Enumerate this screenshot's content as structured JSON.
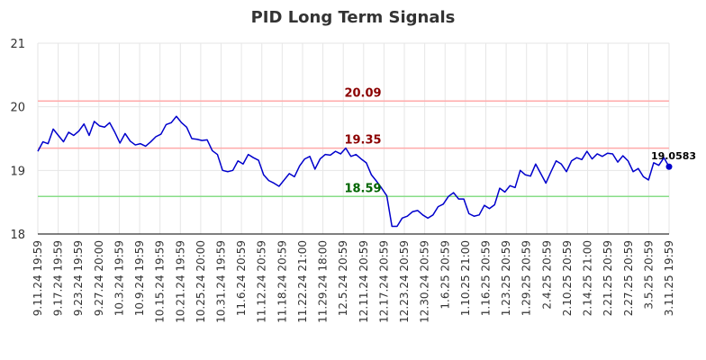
{
  "chart_data": {
    "type": "line",
    "title": "PID Long Term Signals",
    "xlabel": "",
    "ylabel": "",
    "ylim": [
      18,
      21
    ],
    "yticks": [
      18,
      19,
      20,
      21
    ],
    "grid": true,
    "xtick_labels": [
      "9.11.24 19:59",
      "9.17.24 19:59",
      "9.23.24 19:59",
      "9.27.24 20:00",
      "10.3.24 19:59",
      "10.9.24 19:59",
      "10.15.24 19:59",
      "10.21.24 19:59",
      "10.25.24 20:00",
      "10.31.24 19:59",
      "11.6.24 20:59",
      "11.12.24 20:59",
      "11.18.24 20:59",
      "11.22.24 21:00",
      "11.29.24 18:00",
      "12.5.24 20:59",
      "12.11.24 20:59",
      "12.17.24 20:59",
      "12.23.24 20:59",
      "12.30.24 20:59",
      "1.6.25 20:59",
      "1.10.25 21:00",
      "1.16.25 20:59",
      "1.23.25 20:59",
      "1.29.25 20:59",
      "2.4.25 20:59",
      "2.10.25 20:59",
      "2.14.25 21:00",
      "2.21.25 20:59",
      "2.27.25 20:59",
      "3.5.25 20:59",
      "3.11.25 19:59"
    ],
    "series": [
      {
        "color": "#0000cc",
        "values": [
          19.3,
          19.45,
          19.42,
          19.65,
          19.55,
          19.45,
          19.6,
          19.55,
          19.62,
          19.73,
          19.55,
          19.77,
          19.7,
          19.68,
          19.75,
          19.6,
          19.43,
          19.58,
          19.46,
          19.4,
          19.42,
          19.38,
          19.45,
          19.53,
          19.57,
          19.72,
          19.75,
          19.85,
          19.75,
          19.68,
          19.5,
          19.49,
          19.47,
          19.48,
          19.31,
          19.25,
          19.0,
          18.98,
          19.0,
          19.15,
          19.1,
          19.25,
          19.2,
          19.16,
          18.93,
          18.84,
          18.8,
          18.75,
          18.85,
          18.95,
          18.9,
          19.07,
          19.18,
          19.22,
          19.02,
          19.18,
          19.25,
          19.24,
          19.3,
          19.26,
          19.35,
          19.22,
          19.25,
          19.18,
          19.12,
          18.93,
          18.83,
          18.72,
          18.6,
          18.12,
          18.12,
          18.25,
          18.28,
          18.35,
          18.37,
          18.3,
          18.25,
          18.3,
          18.43,
          18.47,
          18.59,
          18.65,
          18.55,
          18.55,
          18.32,
          18.28,
          18.3,
          18.45,
          18.4,
          18.46,
          18.72,
          18.66,
          18.76,
          18.73,
          19.0,
          18.93,
          18.91,
          19.1,
          18.95,
          18.8,
          18.98,
          19.15,
          19.1,
          18.98,
          19.15,
          19.2,
          19.17,
          19.3,
          19.18,
          19.26,
          19.22,
          19.27,
          19.26,
          19.13,
          19.23,
          19.15,
          18.98,
          19.03,
          18.9,
          18.85,
          19.12,
          19.08,
          19.2,
          19.0583
        ]
      }
    ],
    "hlines": [
      {
        "value": 20.09,
        "label": "20.09",
        "line_color": "#ffaaaa",
        "label_color": "#8b0000"
      },
      {
        "value": 19.35,
        "label": "19.35",
        "line_color": "#ffaaaa",
        "label_color": "#8b0000"
      },
      {
        "value": 18.59,
        "label": "18.59",
        "line_color": "#88dd88",
        "label_color": "#006400"
      }
    ],
    "last_label": "19.0583"
  }
}
